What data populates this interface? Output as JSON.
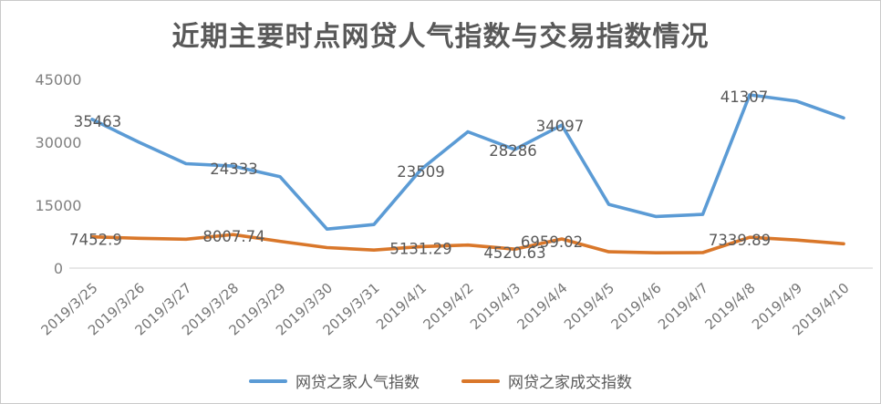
{
  "title": "近期主要时点网贷人气指数与交易指数情况",
  "colors": {
    "popularity_line": "#5B9BD5",
    "turnover_line": "#D9772A",
    "axis_line": "#D9D9D9",
    "axis_tick_text": "#7F7F7F",
    "data_label_text": "#595959",
    "title_text": "#595959"
  },
  "chart_data": {
    "type": "line",
    "title": "近期主要时点网贷人气指数与交易指数情况",
    "categories": [
      "2019/3/25",
      "2019/3/26",
      "2019/3/27",
      "2019/3/28",
      "2019/3/29",
      "2019/3/30",
      "2019/3/31",
      "2019/4/1",
      "2019/4/2",
      "2019/4/3",
      "2019/4/4",
      "2019/4/5",
      "2019/4/6",
      "2019/4/7",
      "2019/4/8",
      "2019/4/9",
      "2019/4/10"
    ],
    "series": [
      {
        "name": "网贷之家人气指数",
        "color": "#5B9BD5",
        "values": [
          35463,
          30000,
          24900,
          24333,
          21800,
          9300,
          10400,
          23509,
          32500,
          28286,
          34097,
          15200,
          12300,
          12800,
          41307,
          39800,
          35800
        ],
        "labels": [
          {
            "index": 0,
            "text": "35463",
            "dx": 6,
            "dy": 2
          },
          {
            "index": 3,
            "text": "24333",
            "dx": 1,
            "dy": 3
          },
          {
            "index": 7,
            "text": "23509",
            "dx": 0,
            "dy": 2
          },
          {
            "index": 9,
            "text": "28286",
            "dx": -2,
            "dy": 1
          },
          {
            "index": 10,
            "text": "34097",
            "dx": -2,
            "dy": 1
          },
          {
            "index": 14,
            "text": "41307",
            "dx": -6,
            "dy": 2
          }
        ]
      },
      {
        "name": "网贷之家成交指数",
        "color": "#D9772A",
        "values": [
          7452.9,
          7100,
          6900,
          8007.74,
          6400,
          4900,
          4300,
          5131.29,
          5500,
          4520.63,
          6959.02,
          3900,
          3650,
          3700,
          7339.89,
          6700,
          5800
        ],
        "labels": [
          {
            "index": 0,
            "text": "7452.9",
            "dx": 4,
            "dy": 3
          },
          {
            "index": 3,
            "text": "8007.74",
            "dx": 1,
            "dy": 2
          },
          {
            "index": 7,
            "text": "5131.29",
            "dx": 0,
            "dy": 2
          },
          {
            "index": 9,
            "text": "4520.63",
            "dx": 0,
            "dy": 4
          },
          {
            "index": 10,
            "text": "6959.02",
            "dx": -11,
            "dy": 3
          },
          {
            "index": 14,
            "text": "7339.89",
            "dx": -11,
            "dy": 3
          }
        ]
      }
    ],
    "ylabel": "",
    "xlabel": "",
    "ylim": [
      0,
      45000
    ],
    "y_ticks": [
      0,
      15000,
      30000,
      45000
    ],
    "x_tick_angle": -42,
    "grid": false,
    "legend_position": "bottom"
  },
  "legend": {
    "items": [
      {
        "label": "网贷之家人气指数"
      },
      {
        "label": "网贷之家成交指数"
      }
    ]
  }
}
